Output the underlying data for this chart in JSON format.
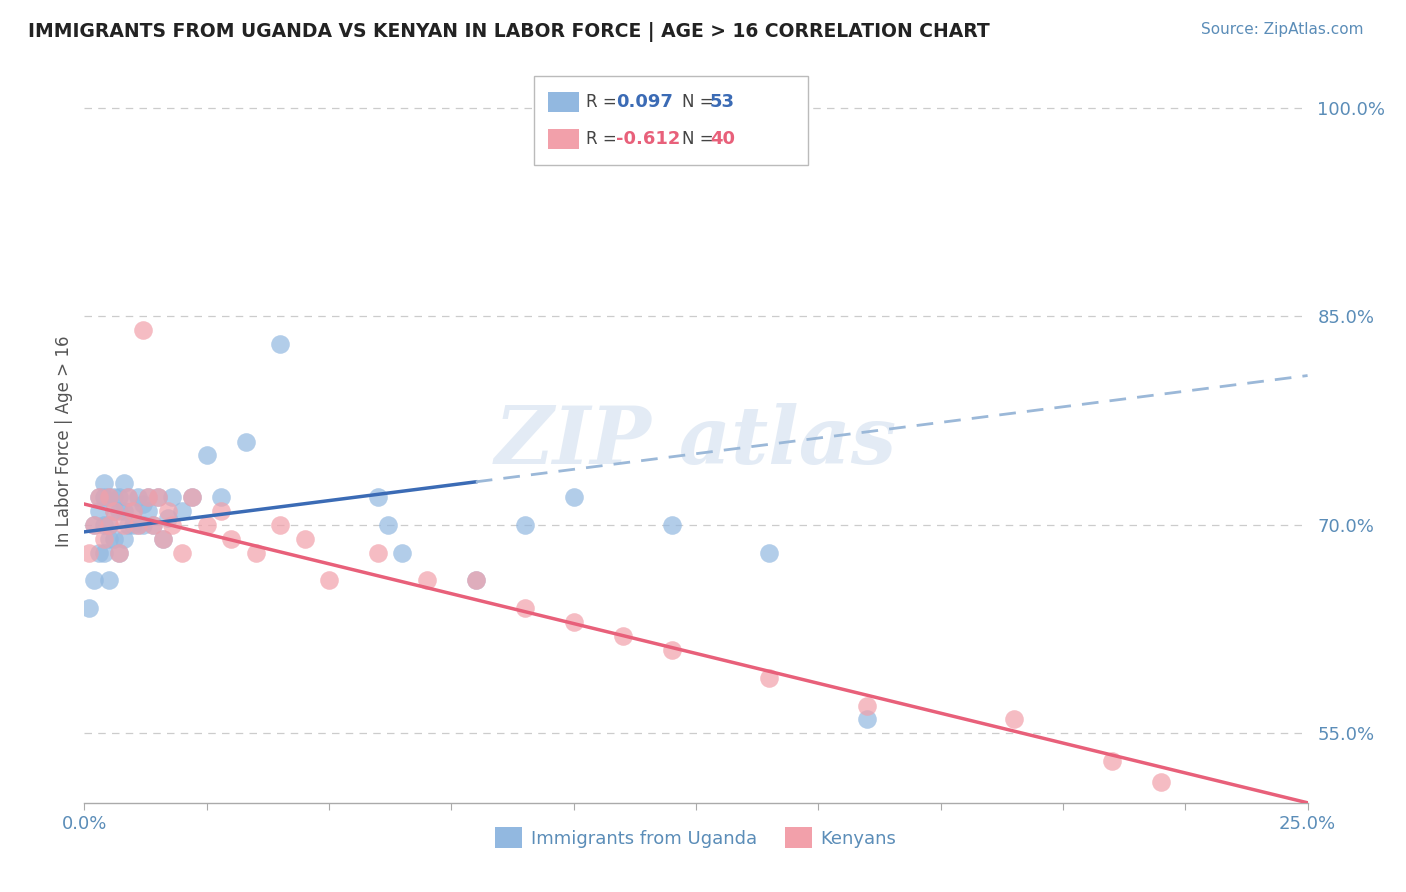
{
  "title": "IMMIGRANTS FROM UGANDA VS KENYAN IN LABOR FORCE | AGE > 16 CORRELATION CHART",
  "source": "Source: ZipAtlas.com",
  "ylabel": "In Labor Force | Age > 16",
  "xlim": [
    0.0,
    0.25
  ],
  "ylim": [
    0.5,
    1.02
  ],
  "xticks": [
    0.0,
    0.025,
    0.05,
    0.075,
    0.1,
    0.125,
    0.15,
    0.175,
    0.2,
    0.225,
    0.25
  ],
  "xtick_labels": [
    "0.0%",
    "",
    "",
    "",
    "",
    "",
    "",
    "",
    "",
    "",
    "25.0%"
  ],
  "ytick_labels": [
    "55.0%",
    "70.0%",
    "85.0%",
    "100.0%"
  ],
  "yticks": [
    0.55,
    0.7,
    0.85,
    1.0
  ],
  "blue_color": "#92B8E0",
  "pink_color": "#F2A0AA",
  "blue_line_color": "#3B6BB5",
  "blue_dash_color": "#9BB8D8",
  "pink_line_color": "#E8607A",
  "blue_line_x_end": 0.08,
  "blue_scatter_x": [
    0.001,
    0.002,
    0.002,
    0.003,
    0.003,
    0.003,
    0.004,
    0.004,
    0.004,
    0.004,
    0.005,
    0.005,
    0.005,
    0.005,
    0.006,
    0.006,
    0.006,
    0.007,
    0.007,
    0.007,
    0.008,
    0.008,
    0.008,
    0.009,
    0.009,
    0.01,
    0.01,
    0.011,
    0.011,
    0.012,
    0.012,
    0.013,
    0.013,
    0.014,
    0.015,
    0.016,
    0.017,
    0.018,
    0.02,
    0.022,
    0.025,
    0.028,
    0.033,
    0.04,
    0.06,
    0.062,
    0.065,
    0.08,
    0.09,
    0.1,
    0.12,
    0.14,
    0.16
  ],
  "blue_scatter_y": [
    0.64,
    0.66,
    0.7,
    0.68,
    0.71,
    0.72,
    0.72,
    0.7,
    0.73,
    0.68,
    0.7,
    0.72,
    0.69,
    0.66,
    0.71,
    0.72,
    0.69,
    0.72,
    0.71,
    0.68,
    0.73,
    0.71,
    0.69,
    0.72,
    0.7,
    0.71,
    0.7,
    0.72,
    0.7,
    0.715,
    0.7,
    0.72,
    0.71,
    0.7,
    0.72,
    0.69,
    0.705,
    0.72,
    0.71,
    0.72,
    0.75,
    0.72,
    0.76,
    0.83,
    0.72,
    0.7,
    0.68,
    0.66,
    0.7,
    0.72,
    0.7,
    0.68,
    0.56
  ],
  "pink_scatter_x": [
    0.001,
    0.002,
    0.003,
    0.004,
    0.005,
    0.005,
    0.006,
    0.007,
    0.008,
    0.009,
    0.01,
    0.011,
    0.012,
    0.013,
    0.014,
    0.015,
    0.016,
    0.017,
    0.018,
    0.02,
    0.022,
    0.025,
    0.028,
    0.03,
    0.035,
    0.04,
    0.045,
    0.05,
    0.06,
    0.07,
    0.08,
    0.09,
    0.1,
    0.11,
    0.12,
    0.14,
    0.16,
    0.19,
    0.21,
    0.22
  ],
  "pink_scatter_y": [
    0.68,
    0.7,
    0.72,
    0.69,
    0.72,
    0.7,
    0.71,
    0.68,
    0.7,
    0.72,
    0.71,
    0.7,
    0.84,
    0.72,
    0.7,
    0.72,
    0.69,
    0.71,
    0.7,
    0.68,
    0.72,
    0.7,
    0.71,
    0.69,
    0.68,
    0.7,
    0.69,
    0.66,
    0.68,
    0.66,
    0.66,
    0.64,
    0.63,
    0.62,
    0.61,
    0.59,
    0.57,
    0.56,
    0.53,
    0.515
  ]
}
